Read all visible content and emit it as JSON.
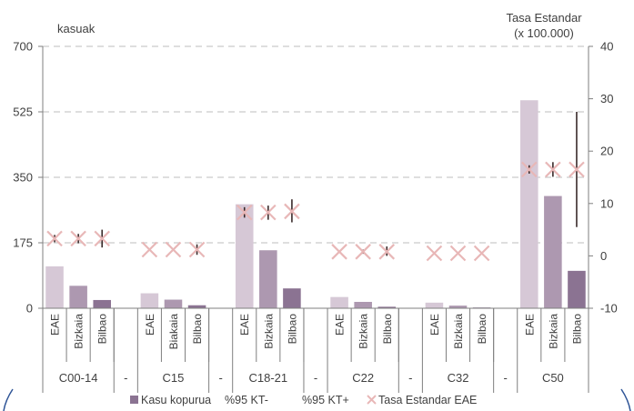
{
  "chart_data": {
    "type": "bar",
    "title": "",
    "ylabel_left": "kasuak",
    "ylabel_right": [
      "Tasa Estandar",
      "(x 100.000)"
    ],
    "ylim_left": [
      0,
      700
    ],
    "yticks_left": [
      "0",
      "175",
      "350",
      "525",
      "700"
    ],
    "ylim_right": [
      -10,
      40
    ],
    "yticks_right": [
      "-10",
      "0",
      "10",
      "20",
      "30",
      "40"
    ],
    "grid": "dashed horizontal",
    "groups": [
      {
        "label": "C00-14",
        "cats": [
          "EAE",
          "Bizkaia",
          "Bilbao"
        ],
        "cases": [
          112,
          60,
          22
        ],
        "rate": [
          3.3,
          3.3,
          3.3
        ],
        "ci": [
          [
            2.6,
            4.0
          ],
          [
            2.4,
            4.2
          ],
          [
            1.6,
            5.0
          ]
        ]
      },
      {
        "label": "C15",
        "cats": [
          "EAE",
          "Biakaia",
          "Bilbao"
        ],
        "cases": [
          40,
          23,
          8
        ],
        "rate": [
          1.2,
          1.2,
          1.2
        ],
        "ci": [
          null,
          null,
          [
            0.2,
            2.2
          ]
        ]
      },
      {
        "label": "C18-21",
        "cats": [
          "EAE",
          "Bizkaia",
          "Bilbao"
        ],
        "cases": [
          278,
          155,
          53
        ],
        "rate": [
          8.3,
          8.3,
          8.5
        ],
        "ci": [
          [
            7.3,
            9.3
          ],
          [
            6.9,
            9.6
          ],
          [
            6.4,
            10.8
          ]
        ]
      },
      {
        "label": "C22",
        "cats": [
          "EAE",
          "Bizkaia",
          "Bilbao"
        ],
        "cases": [
          30,
          17,
          4
        ],
        "rate": [
          0.8,
          0.8,
          0.8
        ],
        "ci": [
          null,
          [
            0.4,
            1.2
          ],
          [
            0.0,
            1.8
          ]
        ]
      },
      {
        "label": "C32",
        "cats": [
          "EAE",
          "Bizkaia",
          "Bilbao"
        ],
        "cases": [
          15,
          7,
          2
        ],
        "rate": [
          0.5,
          0.5,
          0.5
        ],
        "ci": [
          null,
          null,
          null
        ]
      },
      {
        "label": "C50",
        "cats": [
          "EAE",
          "Bizkaia",
          "Bilbao"
        ],
        "cases": [
          556,
          300,
          100
        ],
        "rate": [
          16.5,
          16.5,
          16.5
        ],
        "ci": [
          [
            15.7,
            17.3
          ],
          [
            15.1,
            17.9
          ],
          [
            5.5,
            27.5
          ]
        ]
      }
    ],
    "separator": "-",
    "series": [
      {
        "name": "Kasu kopurua",
        "axis": "left",
        "type": "bar"
      },
      {
        "name": "%95 KT-",
        "axis": "right",
        "type": "error-low"
      },
      {
        "name": "%95 KT+",
        "axis": "right",
        "type": "error-high"
      },
      {
        "name": "Tasa Estandar EAE",
        "axis": "right",
        "type": "marker-x"
      }
    ],
    "colors": {
      "bar_eae": "#d6c8d6",
      "bar_bizkaia": "#ad98b0",
      "bar_bilbao": "#8b7392",
      "marker": "#e8b7b7",
      "errorbar": "#3a2a2a",
      "grid": "#c9c9c9",
      "axis": "#7f7f7f"
    },
    "legend_position": "bottom"
  }
}
